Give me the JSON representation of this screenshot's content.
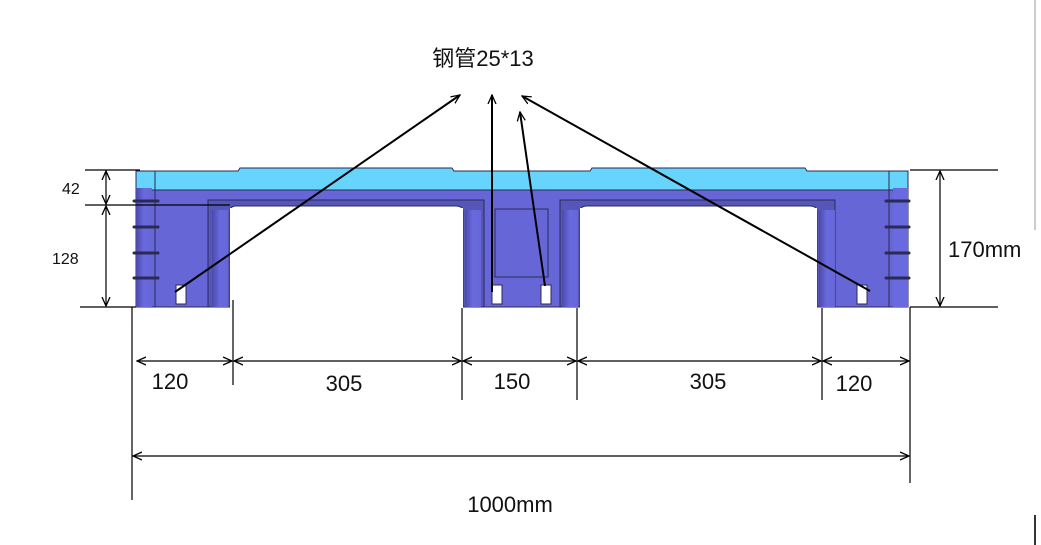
{
  "title": "钢管25*13",
  "colors": {
    "deck_top": "#66d4fb",
    "body": "#6666d6",
    "body_shade": "#4a4aa8",
    "line": "#000000"
  },
  "height_dims": {
    "top_deck": "42",
    "body": "128",
    "total": "170mm"
  },
  "width_dims": [
    "120",
    "305",
    "150",
    "305",
    "120"
  ],
  "total_width": "1000mm"
}
